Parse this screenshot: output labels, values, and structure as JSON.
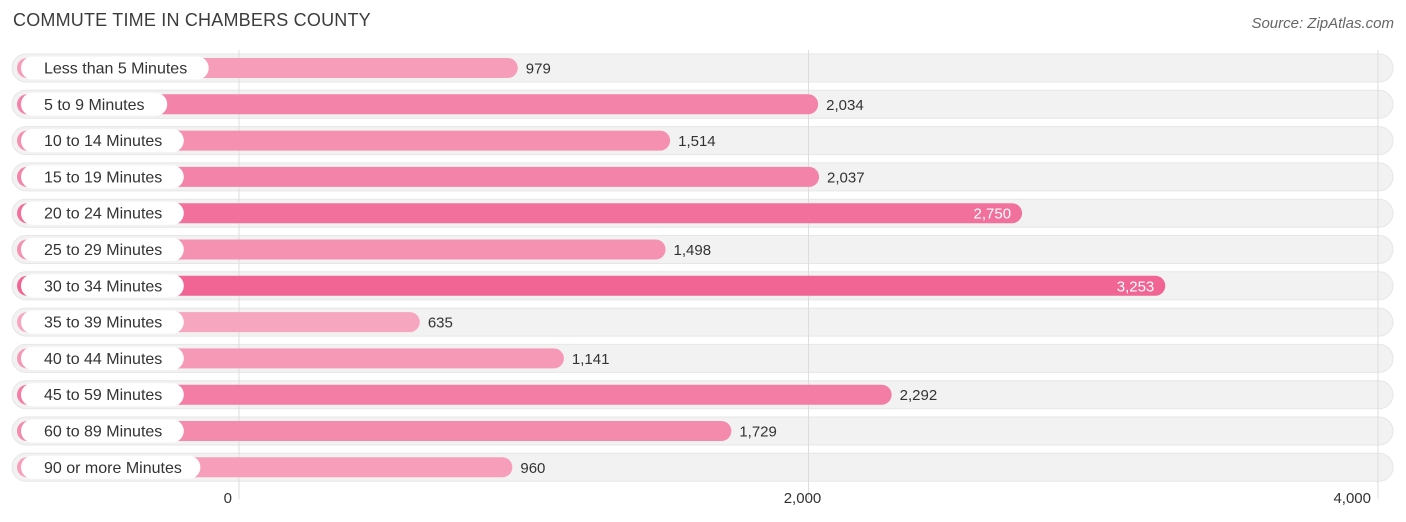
{
  "title": "COMMUTE TIME IN CHAMBERS COUNTY",
  "source": "Source: ZipAtlas.com",
  "chart_data": {
    "type": "bar",
    "orientation": "horizontal",
    "title": "COMMUTE TIME IN CHAMBERS COUNTY",
    "categories": [
      "Less than 5 Minutes",
      "5 to 9 Minutes",
      "10 to 14 Minutes",
      "15 to 19 Minutes",
      "20 to 24 Minutes",
      "25 to 29 Minutes",
      "30 to 34 Minutes",
      "35 to 39 Minutes",
      "40 to 44 Minutes",
      "45 to 59 Minutes",
      "60 to 89 Minutes",
      "90 or more Minutes"
    ],
    "values": [
      979,
      2034,
      1514,
      2037,
      2750,
      1498,
      3253,
      635,
      1141,
      2292,
      1729,
      960
    ],
    "value_labels": [
      "979",
      "2,034",
      "1,514",
      "2,037",
      "2,750",
      "1,498",
      "3,253",
      "635",
      "1,141",
      "2,292",
      "1,729",
      "960"
    ],
    "xlim": [
      0,
      4000
    ],
    "xticks": [
      0,
      2000,
      4000
    ],
    "xtick_labels": [
      "0",
      "2,000",
      "4,000"
    ],
    "grid": true,
    "colors": {
      "bar_light": "#f7a6c0",
      "bar_dark": "#f06593",
      "track": "#f2f2f2",
      "grid": "#dddddd"
    }
  }
}
